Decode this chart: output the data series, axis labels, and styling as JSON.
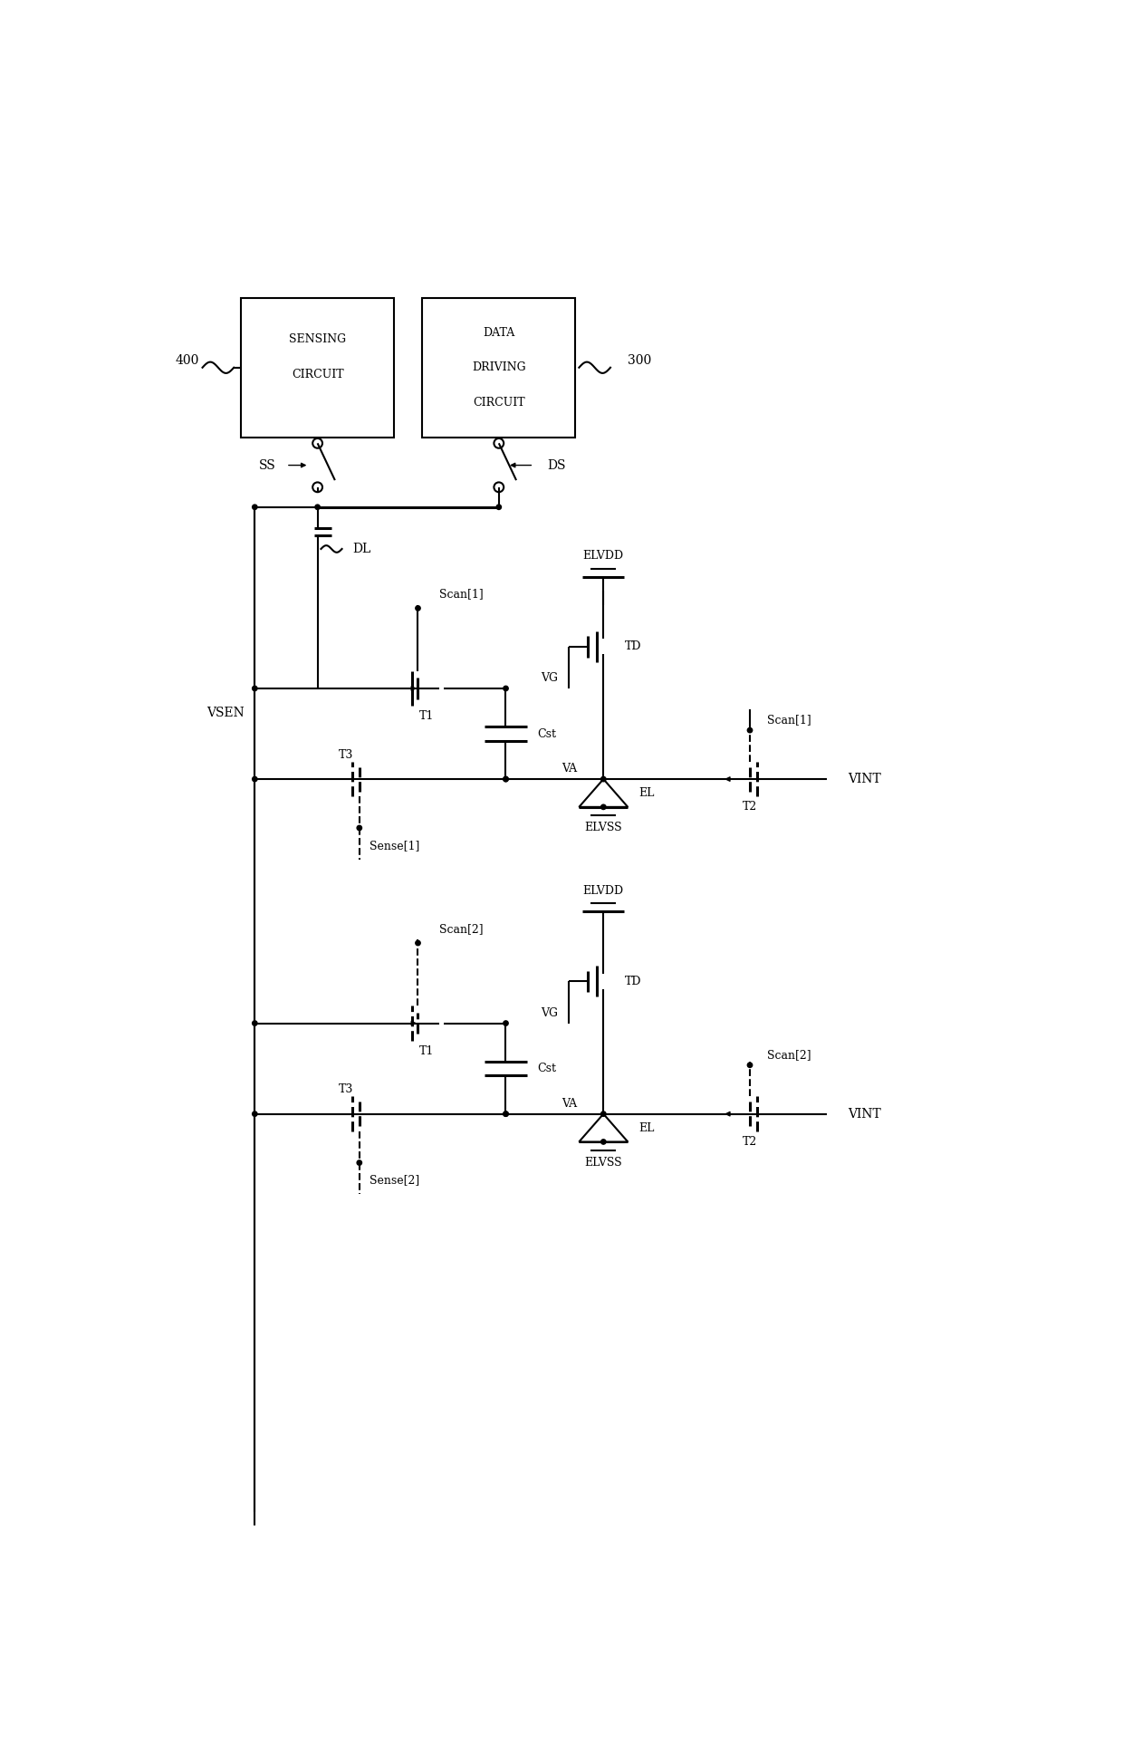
{
  "bg_color": "#ffffff",
  "line_color": "#000000",
  "figsize": [
    12.4,
    19.44
  ],
  "dpi": 100,
  "xlim": [
    0,
    124
  ],
  "ylim": [
    0,
    194.4
  ]
}
